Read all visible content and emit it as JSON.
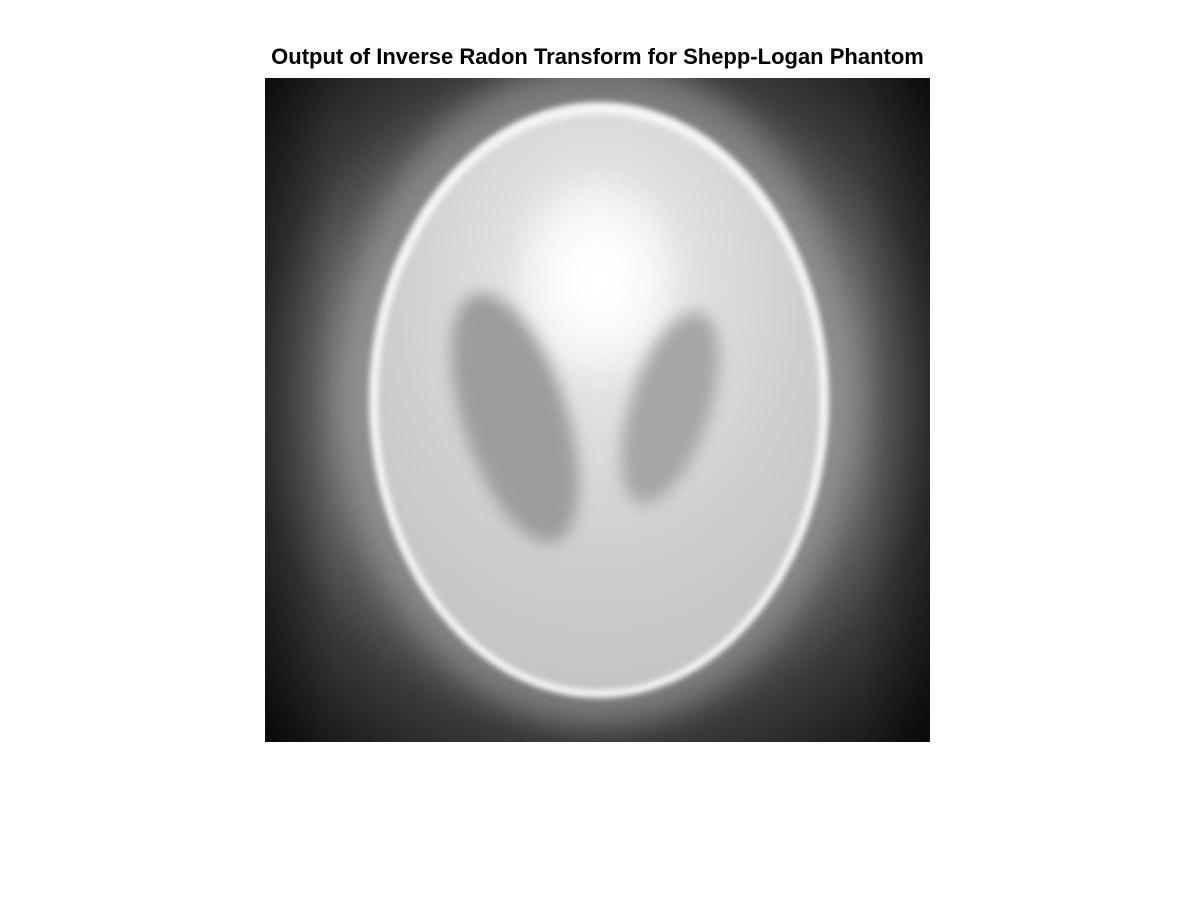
{
  "figure": {
    "title": "Output of Inverse Radon Transform for Shepp-Logan Phantom"
  },
  "image": {
    "colormap": "gray",
    "axes_visible": false,
    "background_color": "#000000",
    "frame_color": "#ffffff"
  }
}
